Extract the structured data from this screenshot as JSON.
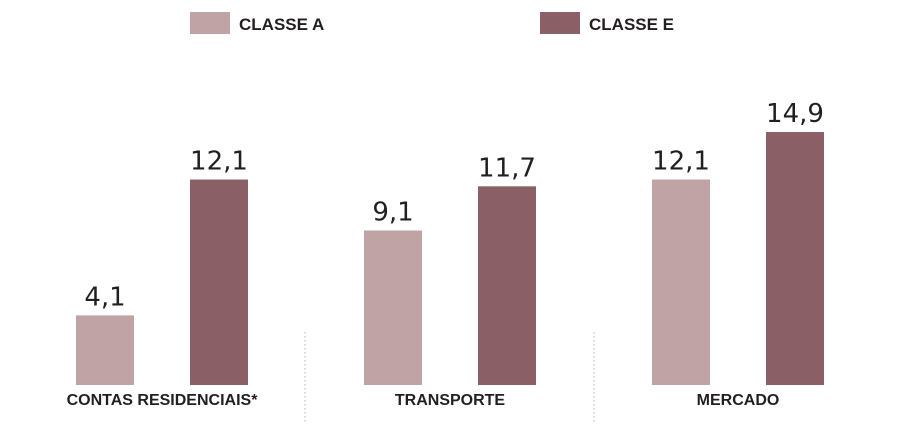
{
  "colors": {
    "classe_a": "#bfa3a5",
    "classe_e": "#8a6066",
    "text": "#231f20",
    "divider": "#b5b5b5"
  },
  "chart_data": {
    "type": "bar",
    "categories": [
      "CONTAS RESIDENCIAIS*",
      "TRANSPORTE",
      "MERCADO"
    ],
    "series": [
      {
        "name": "CLASSE A",
        "values": [
          4.1,
          9.1,
          12.1
        ],
        "labels": [
          "4,1",
          "9,1",
          "12,1"
        ]
      },
      {
        "name": "CLASSE E",
        "values": [
          12.1,
          11.7,
          14.9
        ],
        "labels": [
          "12,1",
          "11,7",
          "14,9"
        ]
      }
    ],
    "ylim": [
      0,
      14.9
    ],
    "legend_position": "top",
    "grid": false
  }
}
